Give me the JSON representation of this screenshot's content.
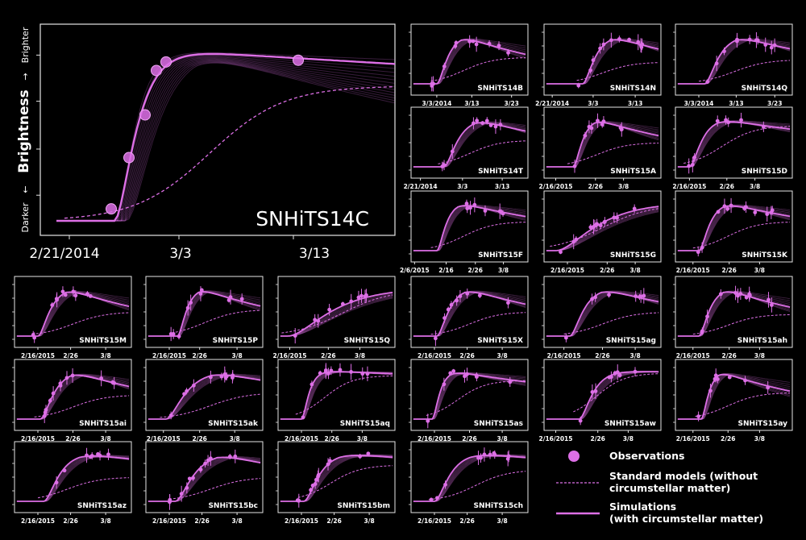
{
  "colors": {
    "background": "#000000",
    "frame": "#e6e6e6",
    "accent": "#dd6fe6",
    "accent_light": "#f0a6f5",
    "text": "#ffffff"
  },
  "big_panel": {
    "ylabel": "Brightness",
    "ylabel_top": "Brighter",
    "ylabel_bottom": "Darker",
    "arrow_up": "→",
    "arrow_down": "←",
    "name": "SNHiTS14C",
    "xticks": [
      "2/21/2014",
      "3/3",
      "3/13"
    ]
  },
  "legend": {
    "observations": "Observations",
    "standard_line1": "Standard models (without",
    "standard_line2": "circumstellar matter)",
    "simulations_line1": "Simulations",
    "simulations_line2": "(with circumstellar matter)"
  },
  "chart_data": [
    {
      "type": "line",
      "name": "SNHiTS14C",
      "xticks": [
        "2/21/2014",
        "3/3",
        "3/13"
      ],
      "x": [
        -8,
        -6,
        -4,
        -2,
        0,
        2,
        4,
        6,
        8,
        10,
        12,
        14
      ],
      "observations_x": [
        -3.6,
        -2.5,
        -1.5,
        -0.8,
        -0.2,
        8
      ],
      "observations_y": [
        0.07,
        0.37,
        0.62,
        0.88,
        0.93,
        0.94
      ],
      "simulation_y": [
        0,
        0,
        0.02,
        0.25,
        0.85,
        0.97,
        1,
        1,
        0.99,
        0.98,
        0.97,
        0.96
      ],
      "standard_y": [
        0,
        0,
        0.01,
        0.06,
        0.17,
        0.3,
        0.43,
        0.55,
        0.64,
        0.71,
        0.75,
        0.77
      ]
    },
    {
      "type": "line",
      "name": "SNHiTS14B",
      "xticks": [
        "3/3/2014",
        "3/13",
        "3/23"
      ]
    },
    {
      "type": "line",
      "name": "SNHiTS14N",
      "xticks": [
        "2/21/2014",
        "3/3",
        "3/13"
      ]
    },
    {
      "type": "line",
      "name": "SNHiTS14Q",
      "xticks": [
        "3/3/2014",
        "3/13",
        "3/23"
      ]
    },
    {
      "type": "line",
      "name": "SNHiTS14T",
      "xticks": [
        "2/21/2014",
        "3/3",
        "3/13"
      ]
    },
    {
      "type": "line",
      "name": "SNHiTS15A",
      "xticks": [
        "2/16/2015",
        "2/26",
        "3/8"
      ]
    },
    {
      "type": "line",
      "name": "SNHiTS15D",
      "xticks": [
        "2/16/2015",
        "2/26",
        "3/8"
      ]
    },
    {
      "type": "line",
      "name": "SNHiTS15F",
      "xticks": [
        "2/6/2015",
        "2/16",
        "2/26",
        "3/8"
      ]
    },
    {
      "type": "line",
      "name": "SNHiTS15G",
      "xticks": [
        "2/16/2015",
        "2/26",
        "3/8"
      ]
    },
    {
      "type": "line",
      "name": "SNHiTS15K",
      "xticks": [
        "2/16/2015",
        "2/26",
        "3/8"
      ]
    },
    {
      "type": "line",
      "name": "SNHiTS15M",
      "xticks": [
        "2/16/2015",
        "2/26",
        "3/8"
      ]
    },
    {
      "type": "line",
      "name": "SNHiTS15P",
      "xticks": [
        "2/16/2015",
        "2/26",
        "3/8"
      ]
    },
    {
      "type": "line",
      "name": "SNHiTS15Q",
      "xticks": [
        "2/16/2015",
        "2/26",
        "3/8"
      ]
    },
    {
      "type": "line",
      "name": "SNHiTS15X",
      "xticks": [
        "2/16/2015",
        "2/26",
        "3/8"
      ]
    },
    {
      "type": "line",
      "name": "SNHiTS15ag",
      "xticks": [
        "2/16/2015",
        "2/26",
        "3/8"
      ]
    },
    {
      "type": "line",
      "name": "SNHiTS15ah",
      "xticks": [
        "2/16/2015",
        "2/26",
        "3/8"
      ]
    },
    {
      "type": "line",
      "name": "SNHiTS15ai",
      "xticks": [
        "2/16/2015",
        "2/26",
        "3/8"
      ]
    },
    {
      "type": "line",
      "name": "SNHiTS15ak",
      "xticks": [
        "2/16/2015",
        "2/26",
        "3/8"
      ]
    },
    {
      "type": "line",
      "name": "SNHiTS15aq",
      "xticks": [
        "2/16/2015",
        "2/26",
        "3/8"
      ]
    },
    {
      "type": "line",
      "name": "SNHiTS15as",
      "xticks": [
        "2/16/2015",
        "2/26",
        "3/8"
      ]
    },
    {
      "type": "line",
      "name": "SNHiTS15aw",
      "xticks": [
        "2/16/2015",
        "2/26",
        "3/8"
      ]
    },
    {
      "type": "line",
      "name": "SNHiTS15ay",
      "xticks": [
        "2/16/2015",
        "2/26",
        "3/8"
      ]
    },
    {
      "type": "line",
      "name": "SNHiTS15az",
      "xticks": [
        "2/16/2015",
        "2/26",
        "3/8"
      ]
    },
    {
      "type": "line",
      "name": "SNHiTS15bc",
      "xticks": [
        "2/16/2015",
        "2/26",
        "3/8"
      ]
    },
    {
      "type": "line",
      "name": "SNHiTS15bm",
      "xticks": [
        "2/16/2015",
        "2/26",
        "3/8"
      ]
    },
    {
      "type": "line",
      "name": "SNHiTS15ch",
      "xticks": [
        "2/16/2015",
        "2/26",
        "3/8"
      ]
    }
  ]
}
